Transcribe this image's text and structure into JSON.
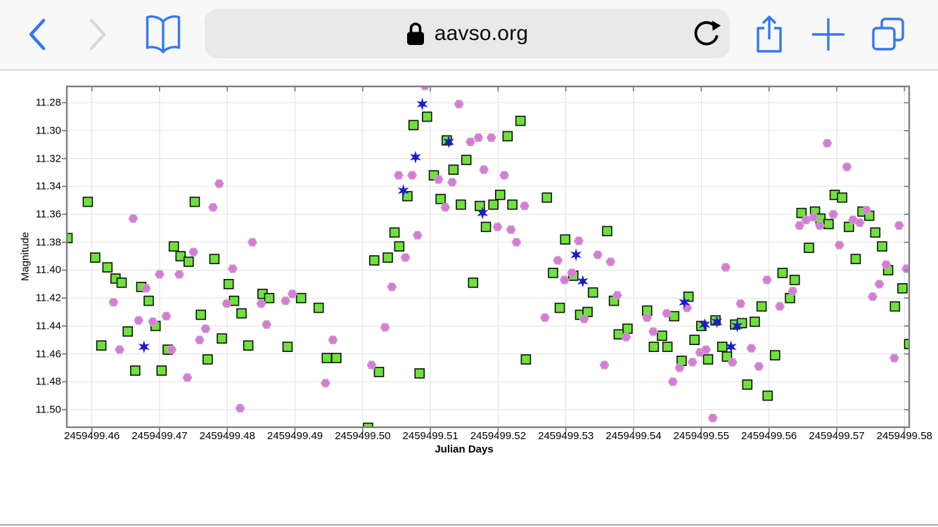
{
  "browser": {
    "url": "aavso.org",
    "icons": [
      "back-icon",
      "forward-icon",
      "bookmarks-icon",
      "lock-icon",
      "reload-icon",
      "share-icon",
      "new-tab-icon",
      "tab-overview-icon"
    ]
  },
  "colors": {
    "accent_blue": "#3478f6",
    "forward_disabled": "#d9d9dd",
    "toolbar_bg": "#f8f8f8",
    "toolbar_border": "#bfbfc3",
    "pill_bg": "#e9e9ea",
    "grid": "#e0e0e0",
    "axis": "#7f7f7f",
    "green_marker": "#6ee23a",
    "violet_marker": "#d97ad9",
    "blue_marker": "#1b1bd0"
  },
  "chart_data": {
    "type": "scatter",
    "title": "",
    "xlabel": "Julian Days",
    "ylabel": "Magnitude",
    "grid": true,
    "y_inverted": true,
    "x_range": [
      2459499.4563,
      2459499.5807
    ],
    "y_range": [
      11.2683,
      11.5126
    ],
    "x_ticks": [
      2459499.46,
      2459499.47,
      2459499.48,
      2459499.49,
      2459499.5,
      2459499.51,
      2459499.52,
      2459499.53,
      2459499.54,
      2459499.55,
      2459499.56,
      2459499.57,
      2459499.58
    ],
    "x_tick_labels": [
      "2459499.46",
      "2459499.47",
      "2459499.48",
      "2459499.49",
      "2459499.50",
      "2459499.51",
      "2459499.52",
      "2459499.53",
      "2459499.54",
      "2459499.55",
      "2459499.56",
      "2459499.57",
      "2459499.58"
    ],
    "y_ticks": [
      11.28,
      11.3,
      11.32,
      11.34,
      11.36,
      11.38,
      11.4,
      11.42,
      11.44,
      11.46,
      11.48,
      11.5
    ],
    "y_tick_labels": [
      "11.28",
      "11.30",
      "11.32",
      "11.34",
      "11.36",
      "11.38",
      "11.40",
      "11.42",
      "11.44",
      "11.46",
      "11.48",
      "11.50"
    ],
    "series": [
      {
        "name": "green-squares",
        "marker": "square",
        "color": "#6ee23a",
        "edge": "#111111",
        "points": [
          [
            2459499.4594,
            11.351
          ],
          [
            2459499.4564,
            11.377
          ],
          [
            2459499.4605,
            11.391
          ],
          [
            2459499.4623,
            11.398
          ],
          [
            2459499.4635,
            11.406
          ],
          [
            2459499.4644,
            11.409
          ],
          [
            2459499.4673,
            11.412
          ],
          [
            2459499.4684,
            11.422
          ],
          [
            2459499.4653,
            11.444
          ],
          [
            2459499.4614,
            11.454
          ],
          [
            2459499.4712,
            11.457
          ],
          [
            2459499.4694,
            11.44
          ],
          [
            2459499.4664,
            11.472
          ],
          [
            2459499.4703,
            11.472
          ],
          [
            2459499.4721,
            11.383
          ],
          [
            2459499.4731,
            11.39
          ],
          [
            2459499.4743,
            11.394
          ],
          [
            2459499.4752,
            11.351
          ],
          [
            2459499.4761,
            11.432
          ],
          [
            2459499.4771,
            11.464
          ],
          [
            2459499.4781,
            11.392
          ],
          [
            2459499.4802,
            11.41
          ],
          [
            2459499.481,
            11.422
          ],
          [
            2459499.4852,
            11.417
          ],
          [
            2459499.4862,
            11.42
          ],
          [
            2459499.4909,
            11.42
          ],
          [
            2459499.4935,
            11.427
          ],
          [
            2459499.4821,
            11.431
          ],
          [
            2459499.4792,
            11.449
          ],
          [
            2459499.4831,
            11.454
          ],
          [
            2459499.4889,
            11.455
          ],
          [
            2459499.4947,
            11.463
          ],
          [
            2459499.4961,
            11.463
          ],
          [
            2459499.5095,
            11.29
          ],
          [
            2459499.5075,
            11.296
          ],
          [
            2459499.5124,
            11.307
          ],
          [
            2459499.5153,
            11.321
          ],
          [
            2459499.5134,
            11.328
          ],
          [
            2459499.5105,
            11.332
          ],
          [
            2459499.5066,
            11.347
          ],
          [
            2459499.5115,
            11.349
          ],
          [
            2459499.5145,
            11.353
          ],
          [
            2459499.5173,
            11.354
          ],
          [
            2459499.5193,
            11.353
          ],
          [
            2459499.5203,
            11.346
          ],
          [
            2459499.5182,
            11.369
          ],
          [
            2459499.5047,
            11.373
          ],
          [
            2459499.5054,
            11.383
          ],
          [
            2459499.5037,
            11.391
          ],
          [
            2459499.5017,
            11.393
          ],
          [
            2459499.5163,
            11.409
          ],
          [
            2459499.5024,
            11.473
          ],
          [
            2459499.5084,
            11.474
          ],
          [
            2459499.5008,
            11.513
          ],
          [
            2459499.5233,
            11.293
          ],
          [
            2459499.5214,
            11.304
          ],
          [
            2459499.5272,
            11.348
          ],
          [
            2459499.5221,
            11.353
          ],
          [
            2459499.5361,
            11.372
          ],
          [
            2459499.5299,
            11.378
          ],
          [
            2459499.5281,
            11.402
          ],
          [
            2459499.5311,
            11.404
          ],
          [
            2459499.534,
            11.416
          ],
          [
            2459499.5371,
            11.422
          ],
          [
            2459499.5291,
            11.427
          ],
          [
            2459499.5321,
            11.432
          ],
          [
            2459499.5332,
            11.43
          ],
          [
            2459499.5391,
            11.442
          ],
          [
            2459499.5378,
            11.446
          ],
          [
            2459499.5241,
            11.464
          ],
          [
            2459499.542,
            11.429
          ],
          [
            2459499.546,
            11.433
          ],
          [
            2459499.5481,
            11.419
          ],
          [
            2459499.543,
            11.455
          ],
          [
            2459499.545,
            11.455
          ],
          [
            2459499.5442,
            11.447
          ],
          [
            2459499.549,
            11.45
          ],
          [
            2459499.5471,
            11.465
          ],
          [
            2459499.551,
            11.464
          ],
          [
            2459499.55,
            11.44
          ],
          [
            2459499.5521,
            11.436
          ],
          [
            2459499.5531,
            11.455
          ],
          [
            2459499.5538,
            11.462
          ],
          [
            2459499.555,
            11.439
          ],
          [
            2459499.556,
            11.438
          ],
          [
            2459499.5579,
            11.437
          ],
          [
            2459499.5589,
            11.426
          ],
          [
            2459499.562,
            11.402
          ],
          [
            2459499.5631,
            11.42
          ],
          [
            2459499.5609,
            11.461
          ],
          [
            2459499.5568,
            11.482
          ],
          [
            2459499.5598,
            11.49
          ],
          [
            2459499.5697,
            11.346
          ],
          [
            2459499.5708,
            11.348
          ],
          [
            2459499.5648,
            11.359
          ],
          [
            2459499.5668,
            11.358
          ],
          [
            2459499.5676,
            11.363
          ],
          [
            2459499.5688,
            11.367
          ],
          [
            2459499.5718,
            11.369
          ],
          [
            2459499.5738,
            11.358
          ],
          [
            2459499.5748,
            11.361
          ],
          [
            2459499.5757,
            11.373
          ],
          [
            2459499.5659,
            11.384
          ],
          [
            2459499.5728,
            11.392
          ],
          [
            2459499.5767,
            11.383
          ],
          [
            2459499.5776,
            11.4
          ],
          [
            2459499.5638,
            11.407
          ],
          [
            2459499.5797,
            11.413
          ],
          [
            2459499.5786,
            11.426
          ],
          [
            2459499.5807,
            11.453
          ]
        ]
      },
      {
        "name": "violet-hexagons",
        "marker": "hexagon",
        "color": "#d97ad9",
        "edge": "#c4adc4",
        "points": [
          [
            2459499.4661,
            11.363
          ],
          [
            2459499.468,
            11.413
          ],
          [
            2459499.47,
            11.403
          ],
          [
            2459499.4729,
            11.403
          ],
          [
            2459499.475,
            11.387
          ],
          [
            2459499.4632,
            11.423
          ],
          [
            2459499.4669,
            11.436
          ],
          [
            2459499.469,
            11.437
          ],
          [
            2459499.471,
            11.433
          ],
          [
            2459499.4641,
            11.457
          ],
          [
            2459499.4718,
            11.457
          ],
          [
            2459499.4768,
            11.442
          ],
          [
            2459499.4759,
            11.45
          ],
          [
            2459499.4741,
            11.477
          ],
          [
            2459499.4788,
            11.338
          ],
          [
            2459499.4779,
            11.355
          ],
          [
            2459499.4837,
            11.38
          ],
          [
            2459499.4808,
            11.399
          ],
          [
            2459499.4799,
            11.424
          ],
          [
            2459499.485,
            11.424
          ],
          [
            2459499.4886,
            11.422
          ],
          [
            2459499.4896,
            11.417
          ],
          [
            2459499.4858,
            11.439
          ],
          [
            2459499.4956,
            11.45
          ],
          [
            2459499.4945,
            11.481
          ],
          [
            2459499.4819,
            11.499
          ],
          [
            2459499.5092,
            11.268
          ],
          [
            2459499.5142,
            11.281
          ],
          [
            2459499.519,
            11.305
          ],
          [
            2459499.5171,
            11.305
          ],
          [
            2459499.5159,
            11.308
          ],
          [
            2459499.5073,
            11.332
          ],
          [
            2459499.5053,
            11.332
          ],
          [
            2459499.5112,
            11.335
          ],
          [
            2459499.5132,
            11.337
          ],
          [
            2459499.5179,
            11.328
          ],
          [
            2459499.5122,
            11.355
          ],
          [
            2459499.5081,
            11.375
          ],
          [
            2459499.5063,
            11.391
          ],
          [
            2459499.5043,
            11.412
          ],
          [
            2459499.5033,
            11.441
          ],
          [
            2459499.5013,
            11.468
          ],
          [
            2459499.5199,
            11.369
          ],
          [
            2459499.5209,
            11.332
          ],
          [
            2459499.5219,
            11.371
          ],
          [
            2459499.5239,
            11.354
          ],
          [
            2459499.5227,
            11.38
          ],
          [
            2459499.5319,
            11.379
          ],
          [
            2459499.5347,
            11.389
          ],
          [
            2459499.5288,
            11.393
          ],
          [
            2459499.5366,
            11.394
          ],
          [
            2459499.5309,
            11.402
          ],
          [
            2459499.5298,
            11.407
          ],
          [
            2459499.5376,
            11.418
          ],
          [
            2459499.5269,
            11.434
          ],
          [
            2459499.5327,
            11.435
          ],
          [
            2459499.5389,
            11.448
          ],
          [
            2459499.5357,
            11.468
          ],
          [
            2459499.5536,
            11.398
          ],
          [
            2459499.5597,
            11.407
          ],
          [
            2459499.5558,
            11.424
          ],
          [
            2459499.5449,
            11.431
          ],
          [
            2459499.542,
            11.434
          ],
          [
            2459499.5479,
            11.427
          ],
          [
            2459499.5429,
            11.444
          ],
          [
            2459499.5498,
            11.459
          ],
          [
            2459499.5507,
            11.457
          ],
          [
            2459499.5487,
            11.466
          ],
          [
            2459499.5468,
            11.47
          ],
          [
            2459499.5546,
            11.466
          ],
          [
            2459499.5574,
            11.456
          ],
          [
            2459499.5585,
            11.469
          ],
          [
            2459499.5616,
            11.426
          ],
          [
            2459499.5458,
            11.48
          ],
          [
            2459499.5517,
            11.506
          ],
          [
            2459499.5686,
            11.309
          ],
          [
            2459499.5715,
            11.326
          ],
          [
            2459499.5645,
            11.368
          ],
          [
            2459499.5655,
            11.364
          ],
          [
            2459499.5666,
            11.362
          ],
          [
            2459499.5675,
            11.368
          ],
          [
            2459499.5695,
            11.36
          ],
          [
            2459499.5724,
            11.364
          ],
          [
            2459499.5734,
            11.366
          ],
          [
            2459499.5744,
            11.357
          ],
          [
            2459499.5792,
            11.368
          ],
          [
            2459499.5704,
            11.382
          ],
          [
            2459499.5773,
            11.396
          ],
          [
            2459499.5803,
            11.399
          ],
          [
            2459499.5763,
            11.41
          ],
          [
            2459499.5635,
            11.415
          ],
          [
            2459499.5753,
            11.419
          ],
          [
            2459499.5785,
            11.463
          ]
        ]
      },
      {
        "name": "blue-stars",
        "marker": "star6",
        "color": "#1b1bd0",
        "edge": "#1b1bd0",
        "points": [
          [
            2459499.4677,
            11.455
          ],
          [
            2459499.5088,
            11.281
          ],
          [
            2459499.5127,
            11.308
          ],
          [
            2459499.5078,
            11.319
          ],
          [
            2459499.506,
            11.343
          ],
          [
            2459499.5177,
            11.359
          ],
          [
            2459499.5315,
            11.389
          ],
          [
            2459499.5325,
            11.408
          ],
          [
            2459499.5475,
            11.423
          ],
          [
            2459499.5505,
            11.439
          ],
          [
            2459499.5523,
            11.437
          ],
          [
            2459499.5553,
            11.44
          ],
          [
            2459499.5544,
            11.455
          ]
        ]
      }
    ]
  }
}
